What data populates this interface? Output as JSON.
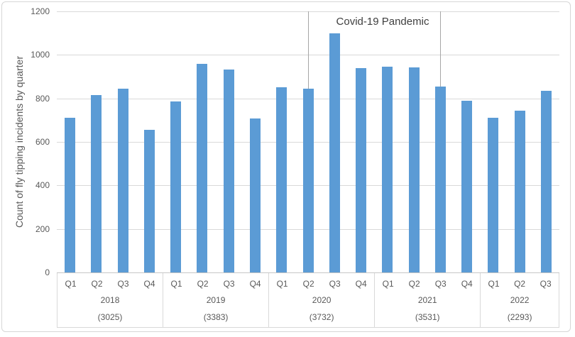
{
  "chart_data": {
    "type": "bar",
    "title": "",
    "xlabel": "",
    "ylabel": "Count of fly tipping incidents by quarter",
    "ylim": [
      0,
      1200
    ],
    "ytick_interval": 200,
    "ytick_labels": [
      "0",
      "200",
      "400",
      "600",
      "800",
      "1000",
      "1200"
    ],
    "grid": "horizontal",
    "legend": "none",
    "bar_color": "#5b9bd5",
    "groups": [
      {
        "year": "2018",
        "total_label": "(3025)",
        "categories": [
          "Q1",
          "Q2",
          "Q3",
          "Q4"
        ],
        "values": [
          712,
          814,
          845,
          654
        ]
      },
      {
        "year": "2019",
        "total_label": "(3383)",
        "categories": [
          "Q1",
          "Q2",
          "Q3",
          "Q4"
        ],
        "values": [
          786,
          958,
          933,
          706
        ]
      },
      {
        "year": "2020",
        "total_label": "(3732)",
        "categories": [
          "Q1",
          "Q2",
          "Q3",
          "Q4"
        ],
        "values": [
          852,
          843,
          1098,
          939
        ]
      },
      {
        "year": "2021",
        "total_label": "(3531)",
        "categories": [
          "Q1",
          "Q2",
          "Q3",
          "Q4"
        ],
        "values": [
          946,
          942,
          853,
          790
        ]
      },
      {
        "year": "2022",
        "total_label": "(2293)",
        "categories": [
          "Q1",
          "Q2",
          "Q3"
        ],
        "values": [
          712,
          745,
          836
        ]
      }
    ],
    "annotation": {
      "label": "Covid-19 Pandemic",
      "start": {
        "year": "2020",
        "quarter": "Q2"
      },
      "end": {
        "year": "2021",
        "quarter": "Q3"
      }
    },
    "colors": {
      "bar": "#5b9bd5",
      "gridline": "#d9d9d9",
      "axis_line": "#c6c6c6",
      "axis_text": "#595959",
      "annotation_line": "#a6a6a6",
      "annotation_text": "#3f3f3f"
    }
  }
}
